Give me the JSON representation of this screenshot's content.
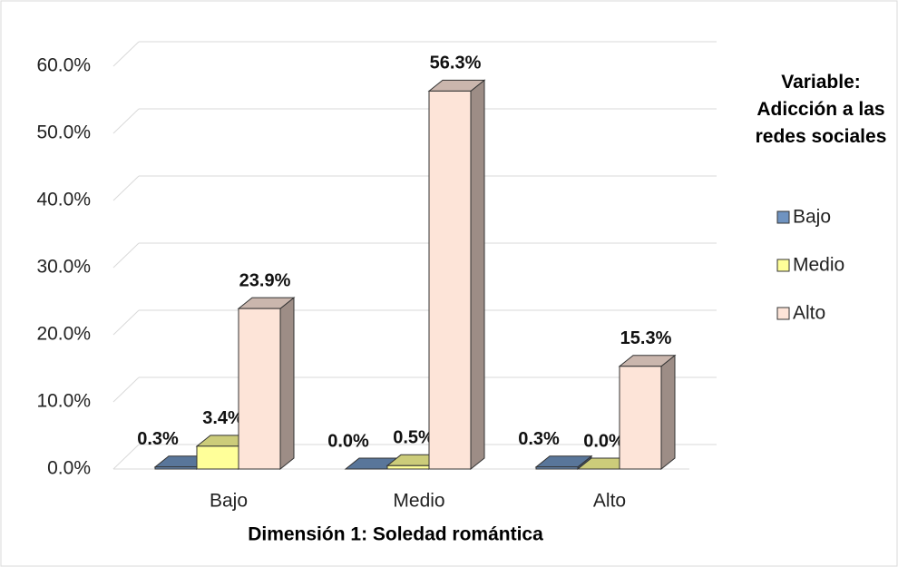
{
  "chart_data": {
    "type": "bar3d",
    "categories": [
      "Bajo",
      "Medio",
      "Alto"
    ],
    "series": [
      {
        "name": "Bajo",
        "color": "#6f93c0",
        "values": [
          0.3,
          0.0,
          0.3
        ],
        "value_labels": [
          "0.3%",
          "0.0%",
          "0.3%"
        ]
      },
      {
        "name": "Medio",
        "color": "#ffff99",
        "values": [
          3.4,
          0.5,
          0.0
        ],
        "value_labels": [
          "3.4%",
          "0.5%",
          "0.0%"
        ]
      },
      {
        "name": "Alto",
        "color": "#fde4d8",
        "values": [
          23.9,
          56.3,
          15.3
        ],
        "value_labels": [
          "23.9%",
          "56.3%",
          "15.3%"
        ]
      }
    ],
    "ylim": [
      0,
      60
    ],
    "yticks": [
      {
        "value": 0,
        "label": "0.0%"
      },
      {
        "value": 10,
        "label": "10.0%"
      },
      {
        "value": 20,
        "label": "20.0%"
      },
      {
        "value": 30,
        "label": "30.0%"
      },
      {
        "value": 40,
        "label": "40.0%"
      },
      {
        "value": 50,
        "label": "50.0%"
      },
      {
        "value": 60,
        "label": "60.0%"
      }
    ],
    "grid": true,
    "xlabel": "Dimensión 1: Soledad romántica",
    "legend_title": "Variable: Adicción a las redes sociales",
    "legend_position": "right"
  }
}
